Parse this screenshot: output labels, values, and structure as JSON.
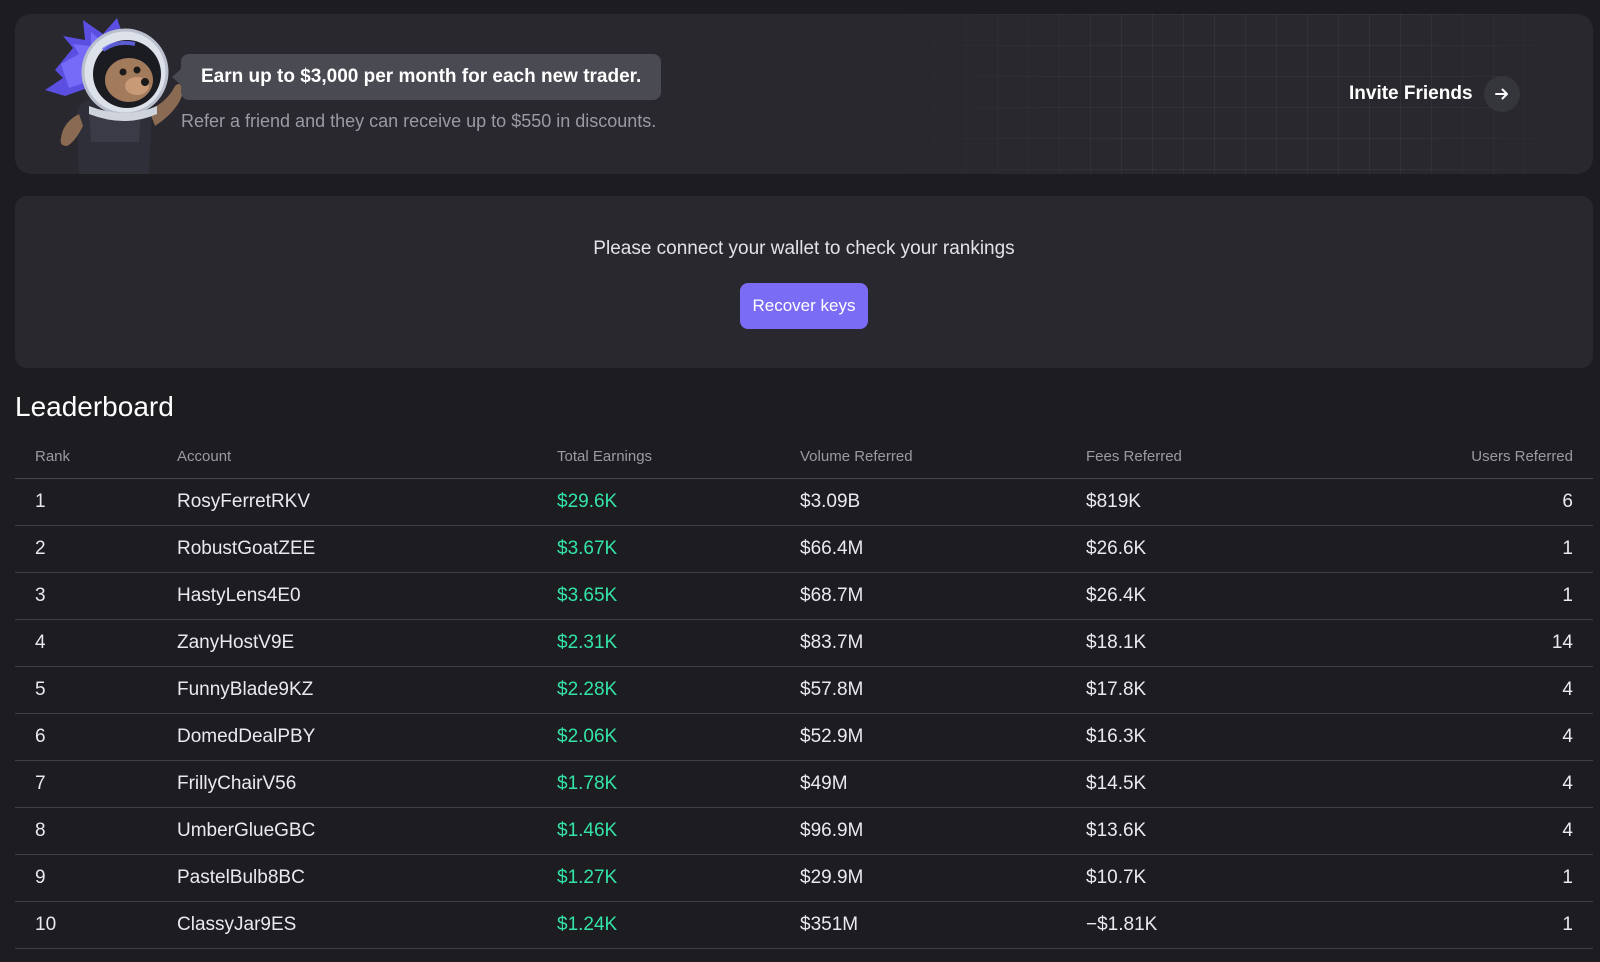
{
  "banner": {
    "headline": "Earn up to $3,000 per month for each new trader.",
    "subtext": "Refer a friend and they can receive up to $550 in discounts.",
    "invite_label": "Invite Friends",
    "icons": {
      "mascot": "astronaut-hedgehog-mascot",
      "invite": "arrow-right-icon"
    }
  },
  "wallet": {
    "message": "Please connect your wallet to check your rankings",
    "button_label": "Recover keys",
    "accent_color": "#7b6cf6"
  },
  "leaderboard": {
    "title": "Leaderboard",
    "columns": [
      "Rank",
      "Account",
      "Total Earnings",
      "Volume Referred",
      "Fees Referred",
      "Users Referred"
    ],
    "earnings_color": "#34e3a8",
    "rows": [
      {
        "rank": "1",
        "account": "RosyFerretRKV",
        "earnings": "$29.6K",
        "volume": "$3.09B",
        "fees": "$819K",
        "users": "6"
      },
      {
        "rank": "2",
        "account": "RobustGoatZEE",
        "earnings": "$3.67K",
        "volume": "$66.4M",
        "fees": "$26.6K",
        "users": "1"
      },
      {
        "rank": "3",
        "account": "HastyLens4E0",
        "earnings": "$3.65K",
        "volume": "$68.7M",
        "fees": "$26.4K",
        "users": "1"
      },
      {
        "rank": "4",
        "account": "ZanyHostV9E",
        "earnings": "$2.31K",
        "volume": "$83.7M",
        "fees": "$18.1K",
        "users": "14"
      },
      {
        "rank": "5",
        "account": "FunnyBlade9KZ",
        "earnings": "$2.28K",
        "volume": "$57.8M",
        "fees": "$17.8K",
        "users": "4"
      },
      {
        "rank": "6",
        "account": "DomedDealPBY",
        "earnings": "$2.06K",
        "volume": "$52.9M",
        "fees": "$16.3K",
        "users": "4"
      },
      {
        "rank": "7",
        "account": "FrillyChairV56",
        "earnings": "$1.78K",
        "volume": "$49M",
        "fees": "$14.5K",
        "users": "4"
      },
      {
        "rank": "8",
        "account": "UmberGlueGBC",
        "earnings": "$1.46K",
        "volume": "$96.9M",
        "fees": "$13.6K",
        "users": "4"
      },
      {
        "rank": "9",
        "account": "PastelBulb8BC",
        "earnings": "$1.27K",
        "volume": "$29.9M",
        "fees": "$10.7K",
        "users": "1"
      },
      {
        "rank": "10",
        "account": "ClassyJar9ES",
        "earnings": "$1.24K",
        "volume": "$351M",
        "fees": "−$1.81K",
        "users": "1"
      }
    ]
  }
}
